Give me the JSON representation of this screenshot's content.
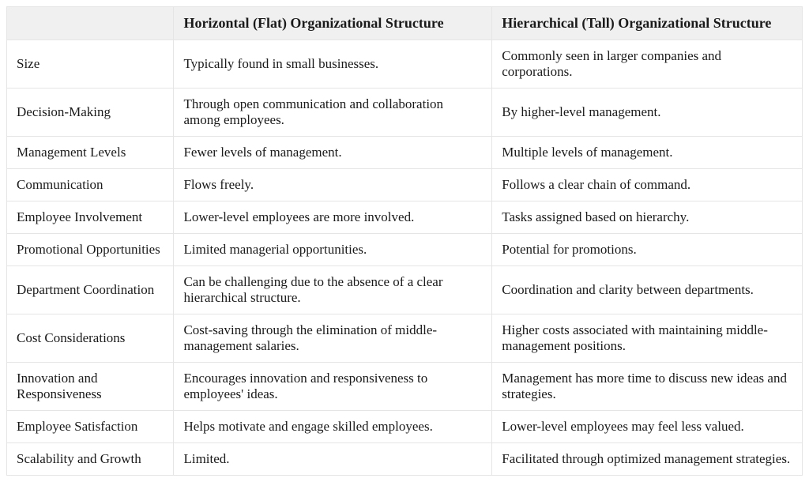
{
  "table": {
    "columns": [
      "",
      "Horizontal (Flat) Organizational Structure",
      "Hierarchical (Tall) Organizational Structure"
    ],
    "rows": [
      {
        "label": "Size",
        "col1": "Typically found in small businesses.",
        "col2": "Commonly seen in larger companies and corporations."
      },
      {
        "label": "Decision-Making",
        "col1": "Through open communication and collaboration among employees.",
        "col2": "By higher-level management."
      },
      {
        "label": "Management Levels",
        "col1": "Fewer levels of management.",
        "col2": "Multiple levels of management."
      },
      {
        "label": "Communication",
        "col1": "Flows freely.",
        "col2": "Follows a clear chain of command."
      },
      {
        "label": "Employee Involvement",
        "col1": "Lower-level employees are more involved.",
        "col2": "Tasks assigned based on hierarchy."
      },
      {
        "label": "Promotional Opportunities",
        "col1": "Limited managerial opportunities.",
        "col2": "Potential for promotions."
      },
      {
        "label": "Department Coordination",
        "col1": "Can be challenging due to the absence of a clear hierarchical structure.",
        "col2": "Coordination and clarity between departments."
      },
      {
        "label": "Cost Considerations",
        "col1": "Cost-saving through the elimination of middle-management salaries.",
        "col2": "Higher costs associated with maintaining middle-management positions."
      },
      {
        "label": "Innovation and Responsiveness",
        "col1": "Encourages innovation and responsiveness to employees' ideas.",
        "col2": "Management has more time to discuss new ideas and strategies."
      },
      {
        "label": "Employee Satisfaction",
        "col1": "Helps motivate and engage skilled employees.",
        "col2": "Lower-level employees may feel less valued."
      },
      {
        "label": "Scalability and Growth",
        "col1": "Limited.",
        "col2": "Facilitated through optimized management strategies."
      }
    ],
    "header_bg": "#f0f0f0",
    "border_color": "#e5e5e5",
    "text_color": "#1a1a1a",
    "font_family": "Georgia, Times New Roman, serif",
    "font_size_body": 17,
    "font_size_header": 18,
    "col_widths_pct": [
      21,
      40,
      39
    ]
  }
}
